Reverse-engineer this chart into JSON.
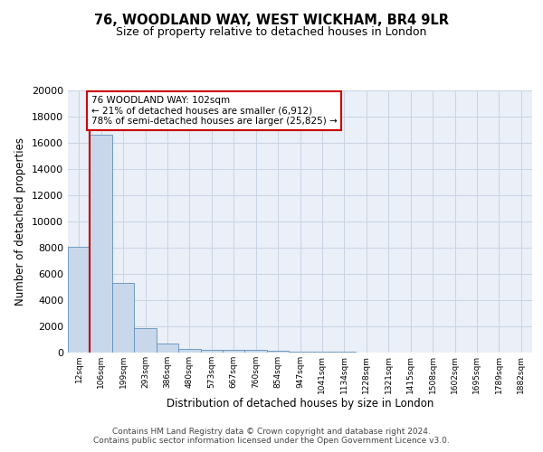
{
  "title1": "76, WOODLAND WAY, WEST WICKHAM, BR4 9LR",
  "title2": "Size of property relative to detached houses in London",
  "xlabel": "Distribution of detached houses by size in London",
  "ylabel": "Number of detached properties",
  "bin_labels": [
    "12sqm",
    "106sqm",
    "199sqm",
    "293sqm",
    "386sqm",
    "480sqm",
    "573sqm",
    "667sqm",
    "760sqm",
    "854sqm",
    "947sqm",
    "1041sqm",
    "1134sqm",
    "1228sqm",
    "1321sqm",
    "1415sqm",
    "1508sqm",
    "1602sqm",
    "1695sqm",
    "1789sqm",
    "1882sqm"
  ],
  "bar_heights": [
    8100,
    16600,
    5300,
    1850,
    700,
    310,
    220,
    200,
    185,
    155,
    100,
    60,
    40,
    25,
    15,
    10,
    8,
    5,
    4,
    3,
    2
  ],
  "bar_color": "#c8d8ea",
  "bar_edge_color": "#6090b8",
  "grid_color": "#c8d4e4",
  "background_color": "#eaeff8",
  "vline_x": 0.5,
  "vline_color": "#bb0000",
  "annotation_text": "76 WOODLAND WAY: 102sqm\n← 21% of detached houses are smaller (6,912)\n78% of semi-detached houses are larger (25,825) →",
  "annotation_box_facecolor": "#ffffff",
  "annotation_box_edgecolor": "#cc0000",
  "footer": "Contains HM Land Registry data © Crown copyright and database right 2024.\nContains public sector information licensed under the Open Government Licence v3.0.",
  "ylim": [
    0,
    20000
  ],
  "yticks": [
    0,
    2000,
    4000,
    6000,
    8000,
    10000,
    12000,
    14000,
    16000,
    18000,
    20000
  ],
  "title1_fontsize": 10.5,
  "title2_fontsize": 9,
  "xlabel_fontsize": 8.5,
  "ylabel_fontsize": 8.5,
  "footer_fontsize": 6.5,
  "tick_fontsize": 8,
  "xtick_fontsize": 6.5
}
